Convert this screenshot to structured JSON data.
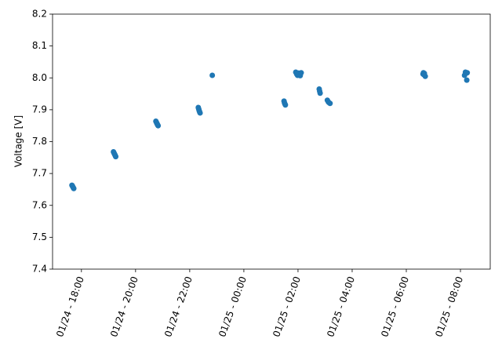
{
  "chart_data": {
    "type": "scatter",
    "y_label": "Voltage [V]",
    "color": "#1f77b4",
    "x": [
      "01/24 - 17:39",
      "01/24 - 17:40",
      "01/24 - 17:41",
      "01/24 - 17:42",
      "01/24 - 17:43",
      "01/24 - 19:11",
      "01/24 - 19:12",
      "01/24 - 19:13",
      "01/24 - 19:14",
      "01/24 - 19:15",
      "01/24 - 19:16",
      "01/24 - 20:45",
      "01/24 - 20:46",
      "01/24 - 20:47",
      "01/24 - 20:48",
      "01/24 - 20:49",
      "01/24 - 20:50",
      "01/24 - 22:19",
      "01/24 - 22:20",
      "01/24 - 22:21",
      "01/24 - 22:22",
      "01/24 - 22:23",
      "01/24 - 22:50",
      "01/25 - 01:29",
      "01/25 - 01:30",
      "01/25 - 01:31",
      "01/25 - 01:32",
      "01/25 - 01:55",
      "01/25 - 01:57",
      "01/25 - 01:59",
      "01/25 - 02:01",
      "01/25 - 02:03",
      "01/25 - 02:05",
      "01/25 - 02:07",
      "01/25 - 02:47",
      "01/25 - 02:48",
      "01/25 - 02:49",
      "01/25 - 03:05",
      "01/25 - 03:07",
      "01/25 - 03:09",
      "01/25 - 03:11",
      "01/25 - 06:37",
      "01/25 - 06:38",
      "01/25 - 06:39",
      "01/25 - 06:40",
      "01/25 - 06:42",
      "01/25 - 08:09",
      "01/25 - 08:11",
      "01/25 - 08:13",
      "01/25 - 08:14",
      "01/25 - 08:15"
    ],
    "values": [
      7.663,
      7.661,
      7.658,
      7.655,
      7.653,
      7.768,
      7.765,
      7.762,
      7.759,
      7.756,
      7.753,
      7.864,
      7.861,
      7.858,
      7.855,
      7.852,
      7.85,
      7.907,
      7.902,
      7.897,
      7.893,
      7.89,
      8.008,
      7.927,
      7.922,
      7.918,
      7.915,
      8.018,
      8.012,
      8.008,
      8.015,
      8.01,
      8.007,
      8.016,
      7.965,
      7.958,
      7.952,
      7.93,
      7.925,
      7.922,
      7.92,
      8.012,
      8.016,
      8.01,
      8.014,
      8.005,
      8.008,
      8.018,
      8.015,
      7.993,
      8.016
    ],
    "xlim": [
      "01/24 - 16:56",
      "01/25 - 09:06"
    ],
    "xticks": [
      "01/24 - 18:00",
      "01/24 - 20:00",
      "01/24 - 22:00",
      "01/25 - 00:00",
      "01/25 - 02:00",
      "01/25 - 04:00",
      "01/25 - 06:00",
      "01/25 - 08:00"
    ],
    "ylim": [
      7.4,
      8.2
    ],
    "yticks": [
      7.4,
      7.5,
      7.6,
      7.7,
      7.8,
      7.9,
      {
        "value": 8,
        "label": "8.0"
      },
      8.1,
      8.2
    ]
  }
}
